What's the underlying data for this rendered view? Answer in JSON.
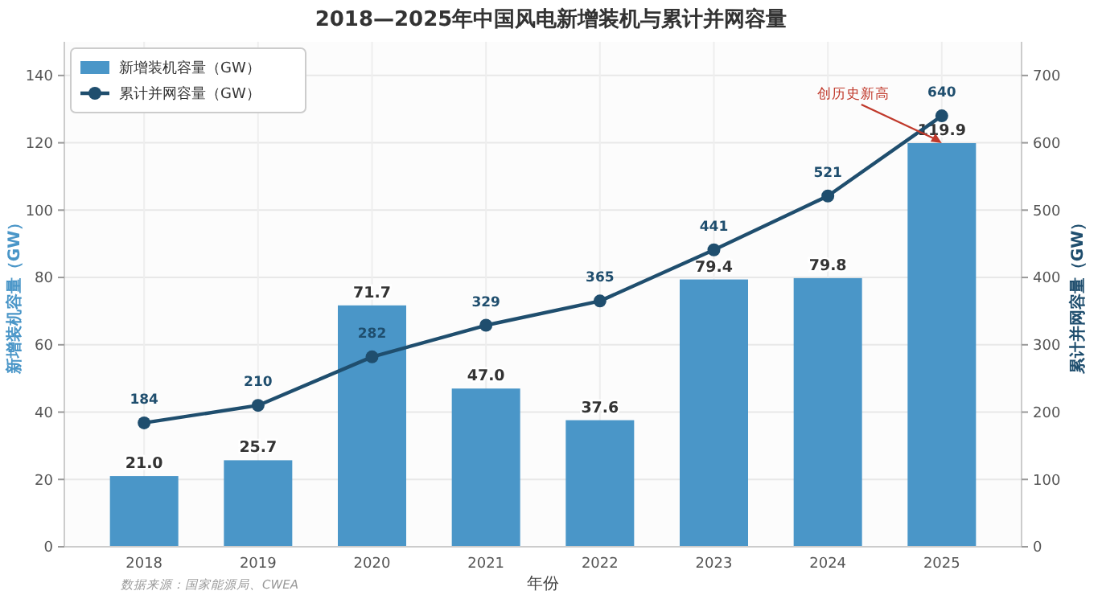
{
  "chart_data": {
    "type": "bar",
    "title": "2018—2025年中国风电新增装机与累计并网容量",
    "xlabel": "年份",
    "ylabel": "新增装机容量（GW）",
    "y2label": "累计并网容量（GW）",
    "categories": [
      "2018",
      "2019",
      "2020",
      "2021",
      "2022",
      "2023",
      "2024",
      "2025"
    ],
    "series": [
      {
        "name": "新增装机容量（GW）",
        "color": "#4a96c8",
        "values": [
          21.0,
          25.7,
          71.7,
          47.0,
          37.6,
          79.4,
          79.8,
          119.9
        ],
        "value_labels": [
          "21.0",
          "25.7",
          "71.7",
          "47.0",
          "37.6",
          "79.4",
          "79.8",
          "119.9"
        ]
      },
      {
        "name": "累计并网容量（GW）",
        "type": "line",
        "axis": "y2",
        "color": "#1f4e6e",
        "marker": "circle",
        "values": [
          184,
          210,
          282,
          329,
          365,
          441,
          521,
          640
        ],
        "value_labels": [
          "184",
          "210",
          "282",
          "329",
          "365",
          "441",
          "521",
          "640"
        ]
      }
    ],
    "ylim": [
      0,
      150
    ],
    "yticks": [
      0,
      20,
      40,
      60,
      80,
      100,
      120,
      140
    ],
    "y2lim": [
      0,
      750
    ],
    "y2ticks": [
      0,
      100,
      200,
      300,
      400,
      500,
      600,
      700
    ],
    "grid": true,
    "legend": "top left",
    "annotations": [
      {
        "text": "创历史新高",
        "x": "2025",
        "y": 119.9
      },
      "数据来源：国家能源局、CWEA"
    ]
  }
}
